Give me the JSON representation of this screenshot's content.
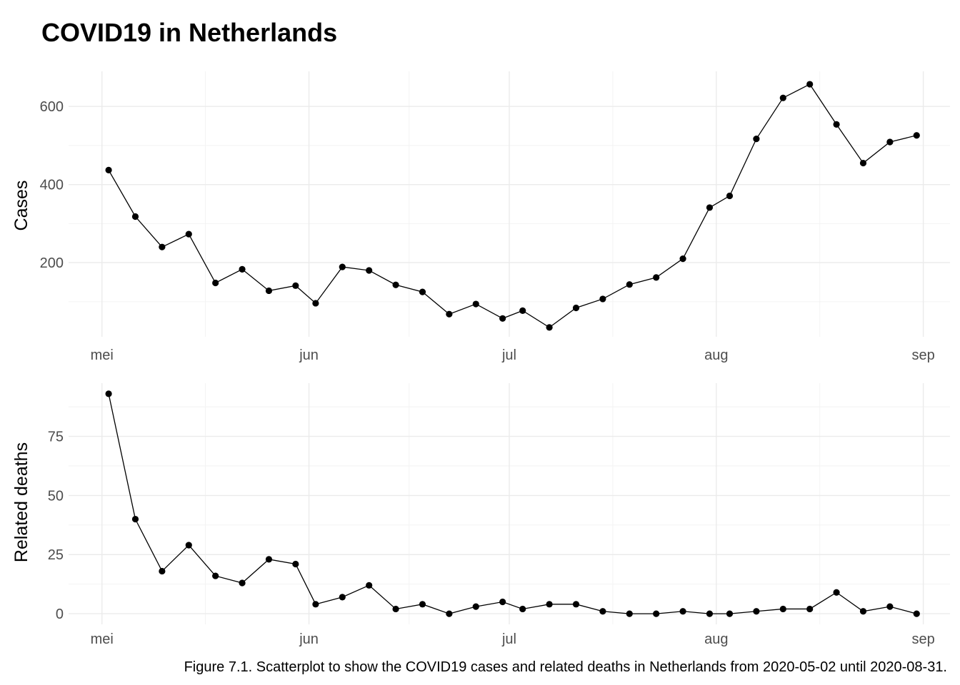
{
  "title": "COVID19 in Netherlands",
  "caption": "Figure 7.1. Scatterplot to show the COVID19 cases and related deaths in Netherlands from 2020-05-02 until 2020-08-31.",
  "chart_data": [
    {
      "type": "line",
      "ylabel": "Cases",
      "xlabel": "",
      "x_ticks": [
        {
          "date": "2020-05-01",
          "label": "mei"
        },
        {
          "date": "2020-06-01",
          "label": "jun"
        },
        {
          "date": "2020-07-01",
          "label": "jul"
        },
        {
          "date": "2020-08-01",
          "label": "aug"
        },
        {
          "date": "2020-09-01",
          "label": "sep"
        }
      ],
      "y_ticks": [
        200,
        400,
        600
      ],
      "ylim": [
        10,
        690
      ],
      "xlim": [
        "2020-04-26",
        "2020-09-05"
      ],
      "grid": true,
      "points": [
        {
          "x": "2020-05-02",
          "y": 437
        },
        {
          "x": "2020-05-06",
          "y": 318
        },
        {
          "x": "2020-05-10",
          "y": 240
        },
        {
          "x": "2020-05-14",
          "y": 273
        },
        {
          "x": "2020-05-18",
          "y": 148
        },
        {
          "x": "2020-05-22",
          "y": 183
        },
        {
          "x": "2020-05-26",
          "y": 128
        },
        {
          "x": "2020-05-30",
          "y": 141
        },
        {
          "x": "2020-06-02",
          "y": 96
        },
        {
          "x": "2020-06-06",
          "y": 189
        },
        {
          "x": "2020-06-10",
          "y": 180
        },
        {
          "x": "2020-06-14",
          "y": 143
        },
        {
          "x": "2020-06-18",
          "y": 125
        },
        {
          "x": "2020-06-22",
          "y": 68
        },
        {
          "x": "2020-06-26",
          "y": 94
        },
        {
          "x": "2020-06-30",
          "y": 57
        },
        {
          "x": "2020-07-03",
          "y": 77
        },
        {
          "x": "2020-07-07",
          "y": 34
        },
        {
          "x": "2020-07-11",
          "y": 84
        },
        {
          "x": "2020-07-15",
          "y": 107
        },
        {
          "x": "2020-07-19",
          "y": 144
        },
        {
          "x": "2020-07-23",
          "y": 162
        },
        {
          "x": "2020-07-27",
          "y": 210
        },
        {
          "x": "2020-07-31",
          "y": 341
        },
        {
          "x": "2020-08-03",
          "y": 371
        },
        {
          "x": "2020-08-07",
          "y": 517
        },
        {
          "x": "2020-08-11",
          "y": 622
        },
        {
          "x": "2020-08-15",
          "y": 657
        },
        {
          "x": "2020-08-19",
          "y": 554
        },
        {
          "x": "2020-08-23",
          "y": 455
        },
        {
          "x": "2020-08-27",
          "y": 509
        },
        {
          "x": "2020-08-31",
          "y": 526
        }
      ]
    },
    {
      "type": "line",
      "ylabel": "Related deaths",
      "xlabel": "",
      "x_ticks": [
        {
          "date": "2020-05-01",
          "label": "mei"
        },
        {
          "date": "2020-06-01",
          "label": "jun"
        },
        {
          "date": "2020-07-01",
          "label": "jul"
        },
        {
          "date": "2020-08-01",
          "label": "aug"
        },
        {
          "date": "2020-09-01",
          "label": "sep"
        }
      ],
      "y_ticks": [
        0,
        25,
        50,
        75
      ],
      "ylim": [
        -4.5,
        97.5
      ],
      "xlim": [
        "2020-04-26",
        "2020-09-05"
      ],
      "grid": true,
      "points": [
        {
          "x": "2020-05-02",
          "y": 93
        },
        {
          "x": "2020-05-06",
          "y": 40
        },
        {
          "x": "2020-05-10",
          "y": 18
        },
        {
          "x": "2020-05-14",
          "y": 29
        },
        {
          "x": "2020-05-18",
          "y": 16
        },
        {
          "x": "2020-05-22",
          "y": 13
        },
        {
          "x": "2020-05-26",
          "y": 23
        },
        {
          "x": "2020-05-30",
          "y": 21
        },
        {
          "x": "2020-06-02",
          "y": 4
        },
        {
          "x": "2020-06-06",
          "y": 7
        },
        {
          "x": "2020-06-10",
          "y": 12
        },
        {
          "x": "2020-06-14",
          "y": 2
        },
        {
          "x": "2020-06-18",
          "y": 4
        },
        {
          "x": "2020-06-22",
          "y": 0
        },
        {
          "x": "2020-06-26",
          "y": 3
        },
        {
          "x": "2020-06-30",
          "y": 5
        },
        {
          "x": "2020-07-03",
          "y": 2
        },
        {
          "x": "2020-07-07",
          "y": 4
        },
        {
          "x": "2020-07-11",
          "y": 4
        },
        {
          "x": "2020-07-15",
          "y": 1
        },
        {
          "x": "2020-07-19",
          "y": 0
        },
        {
          "x": "2020-07-23",
          "y": 0
        },
        {
          "x": "2020-07-27",
          "y": 1
        },
        {
          "x": "2020-07-31",
          "y": 0
        },
        {
          "x": "2020-08-03",
          "y": 0
        },
        {
          "x": "2020-08-07",
          "y": 1
        },
        {
          "x": "2020-08-11",
          "y": 2
        },
        {
          "x": "2020-08-15",
          "y": 2
        },
        {
          "x": "2020-08-19",
          "y": 9
        },
        {
          "x": "2020-08-23",
          "y": 1
        },
        {
          "x": "2020-08-27",
          "y": 3
        },
        {
          "x": "2020-08-31",
          "y": 0
        }
      ]
    }
  ]
}
